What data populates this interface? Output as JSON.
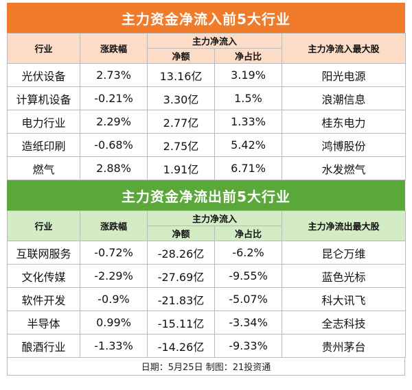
{
  "inflow": {
    "title": "主力资金净流入前5大行业",
    "headers": {
      "industry": "行业",
      "change": "涨跌幅",
      "net_group": "主力净流入",
      "net_amount": "净额",
      "net_ratio": "净占比",
      "top_stock": "主力净流入最大股"
    },
    "rows": [
      {
        "industry": "光伏设备",
        "change": "2.73%",
        "amount": "13.16亿",
        "ratio": "3.19%",
        "stock": "阳光电源"
      },
      {
        "industry": "计算机设备",
        "change": "-0.21%",
        "amount": "3.30亿",
        "ratio": "1.5%",
        "stock": "浪潮信息"
      },
      {
        "industry": "电力行业",
        "change": "2.29%",
        "amount": "2.77亿",
        "ratio": "1.33%",
        "stock": "桂东电力"
      },
      {
        "industry": "造纸印刷",
        "change": "-0.68%",
        "amount": "2.75亿",
        "ratio": "5.42%",
        "stock": "鸿博股份"
      },
      {
        "industry": "燃气",
        "change": "2.88%",
        "amount": "1.91亿",
        "ratio": "6.71%",
        "stock": "水发燃气"
      }
    ]
  },
  "outflow": {
    "title": "主力资金净流出前5大行业",
    "headers": {
      "industry": "行业",
      "change": "涨跌幅",
      "net_group": "主力净流入",
      "net_amount": "净额",
      "net_ratio": "净占比",
      "top_stock": "主力净流出最大股"
    },
    "rows": [
      {
        "industry": "互联网服务",
        "change": "-0.72%",
        "amount": "-28.26亿",
        "ratio": "-6.2%",
        "stock": "昆仑万维"
      },
      {
        "industry": "文化传媒",
        "change": "-2.29%",
        "amount": "-27.69亿",
        "ratio": "-9.55%",
        "stock": "蓝色光标"
      },
      {
        "industry": "软件开发",
        "change": "-0.9%",
        "amount": "-21.83亿",
        "ratio": "-5.07%",
        "stock": "科大讯飞"
      },
      {
        "industry": "半导体",
        "change": "0.99%",
        "amount": "-15.11亿",
        "ratio": "-3.34%",
        "stock": "全志科技"
      },
      {
        "industry": "酿酒行业",
        "change": "-1.33%",
        "amount": "-14.26亿",
        "ratio": "-9.33%",
        "stock": "贵州茅台"
      }
    ]
  },
  "footer": "日期：5月25日 制图：21投资通",
  "colors": {
    "inflow_banner": "#ef7b2b",
    "inflow_header": "#fcdcc6",
    "outflow_banner": "#5aa83a",
    "outflow_header": "#d4ecc6"
  }
}
